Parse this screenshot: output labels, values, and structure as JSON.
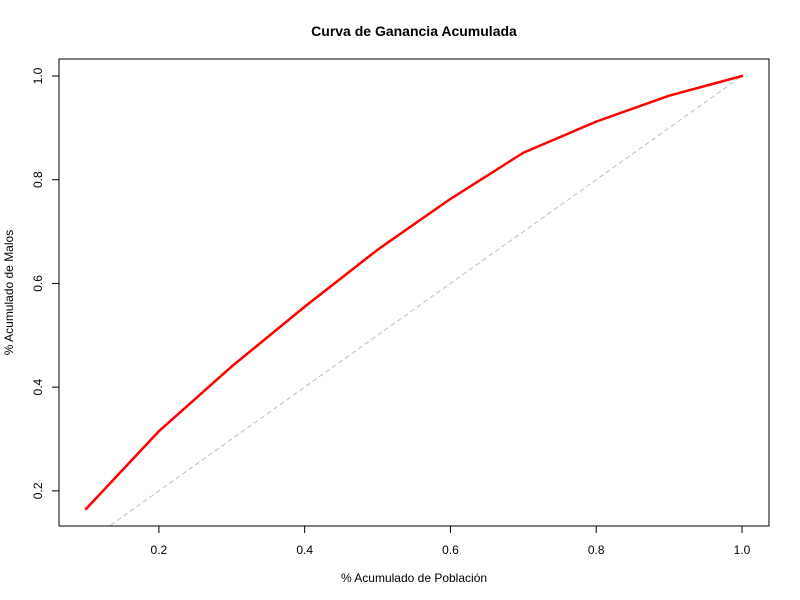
{
  "chart_data": {
    "type": "line",
    "title": "Curva de Ganancia Acumulada",
    "xlabel": "% Acumulado de Población",
    "ylabel": "% Acumulado de Malos",
    "xlim": [
      0.1,
      1.0
    ],
    "ylim": [
      0.165,
      1.0
    ],
    "x_ticks": [
      "0.2",
      "0.4",
      "0.6",
      "0.8",
      "1.0"
    ],
    "y_ticks": [
      "0.2",
      "0.4",
      "0.6",
      "0.8",
      "1.0"
    ],
    "grid": false,
    "series": [
      {
        "color": "#ff0000",
        "style": "solid",
        "x": [
          0.1,
          0.2,
          0.3,
          0.4,
          0.5,
          0.6,
          0.7,
          0.8,
          0.9,
          1.0
        ],
        "y": [
          0.165,
          0.315,
          0.44,
          0.555,
          0.665,
          0.763,
          0.852,
          0.912,
          0.962,
          1.0
        ]
      },
      {
        "color": "#bebebe",
        "style": "dashed",
        "x": [
          0.0,
          1.0
        ],
        "y": [
          0.0,
          1.0
        ]
      }
    ]
  }
}
